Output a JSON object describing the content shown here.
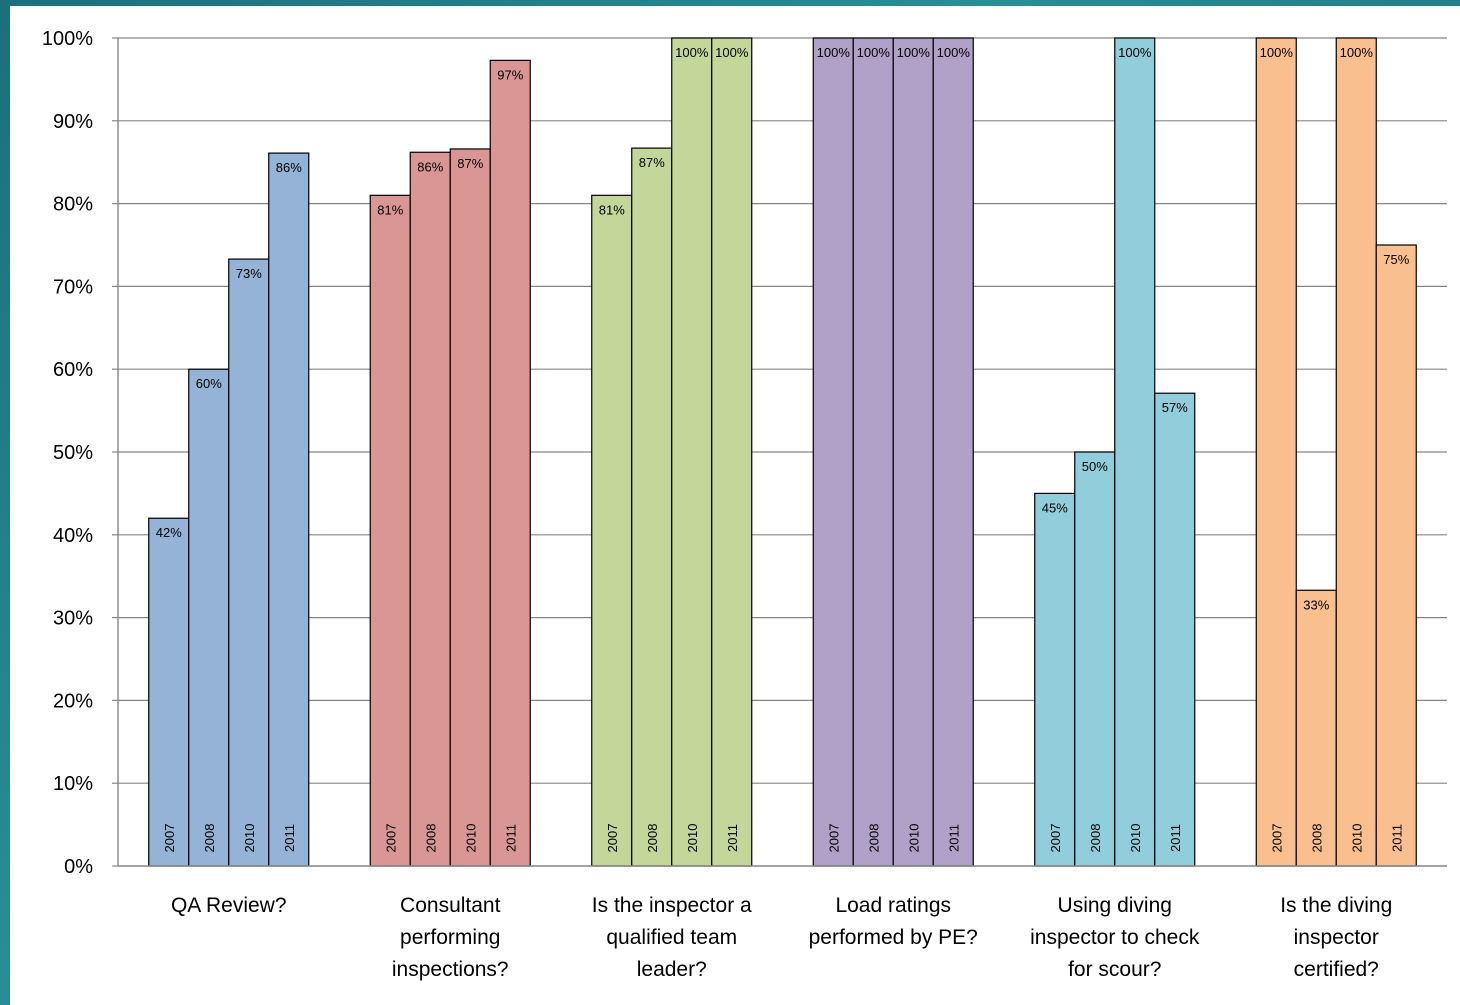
{
  "chart_data": {
    "type": "bar",
    "title": "",
    "xlabel": "",
    "ylabel": "",
    "ylim": [
      0,
      100
    ],
    "yticks": [
      "0%",
      "10%",
      "20%",
      "30%",
      "40%",
      "50%",
      "60%",
      "70%",
      "80%",
      "90%",
      "100%"
    ],
    "grid": true,
    "legend": "none",
    "groups": [
      {
        "category": [
          "QA Review?"
        ],
        "color": "#95b3d7",
        "bars": [
          {
            "year": "2007",
            "value": 42,
            "label": "42%"
          },
          {
            "year": "2008",
            "value": 60,
            "label": "60%"
          },
          {
            "year": "2010",
            "value": 73.3,
            "label": "73%"
          },
          {
            "year": "2011",
            "value": 86.1,
            "label": "86%"
          }
        ]
      },
      {
        "category": [
          "Consultant",
          "performing",
          "inspections?"
        ],
        "color": "#da9694",
        "bars": [
          {
            "year": "2007",
            "value": 81,
            "label": "81%"
          },
          {
            "year": "2008",
            "value": 86.2,
            "label": "86%"
          },
          {
            "year": "2010",
            "value": 86.6,
            "label": "87%"
          },
          {
            "year": "2011",
            "value": 97.3,
            "label": "97%"
          }
        ]
      },
      {
        "category": [
          "Is the inspector a",
          "qualified team",
          "leader?"
        ],
        "color": "#c4d79b",
        "bars": [
          {
            "year": "2007",
            "value": 81,
            "label": "81%"
          },
          {
            "year": "2008",
            "value": 86.7,
            "label": "87%"
          },
          {
            "year": "2010",
            "value": 100,
            "label": "100%"
          },
          {
            "year": "2011",
            "value": 100,
            "label": "100%"
          }
        ]
      },
      {
        "category": [
          "Load ratings",
          "performed by PE?"
        ],
        "color": "#b1a0c7",
        "bars": [
          {
            "year": "2007",
            "value": 100,
            "label": "100%"
          },
          {
            "year": "2008",
            "value": 100,
            "label": "100%"
          },
          {
            "year": "2010",
            "value": 100,
            "label": "100%"
          },
          {
            "year": "2011",
            "value": 100,
            "label": "100%"
          }
        ]
      },
      {
        "category": [
          "Using diving",
          "inspector to check",
          "for scour?"
        ],
        "color": "#92cddc",
        "bars": [
          {
            "year": "2007",
            "value": 45,
            "label": "45%"
          },
          {
            "year": "2008",
            "value": 50,
            "label": "50%"
          },
          {
            "year": "2010",
            "value": 100,
            "label": "100%"
          },
          {
            "year": "2011",
            "value": 57.1,
            "label": "57%"
          }
        ]
      },
      {
        "category": [
          "Is the diving",
          "inspector",
          "certified?"
        ],
        "color": "#fabf8f",
        "bars": [
          {
            "year": "2007",
            "value": 100,
            "label": "100%"
          },
          {
            "year": "2008",
            "value": 33.3,
            "label": "33%"
          },
          {
            "year": "2010",
            "value": 100,
            "label": "100%"
          },
          {
            "year": "2011",
            "value": 75,
            "label": "75%"
          }
        ]
      }
    ]
  }
}
